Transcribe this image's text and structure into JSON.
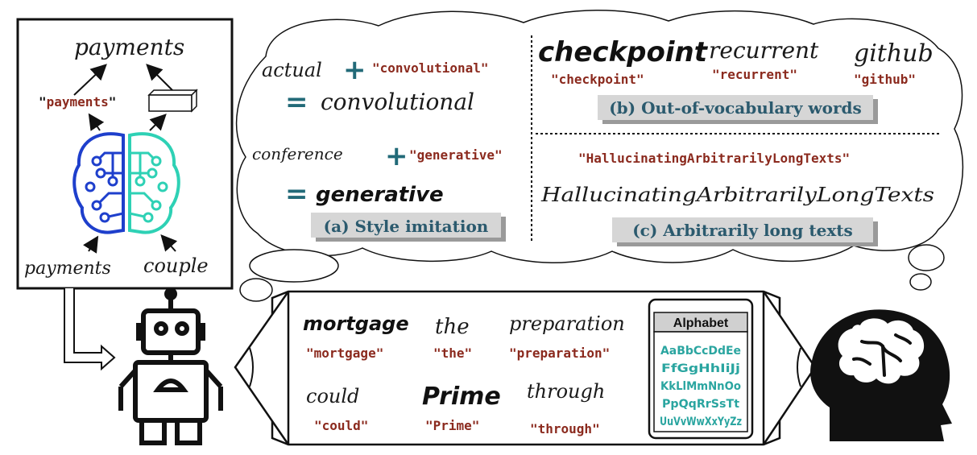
{
  "left_panel": {
    "top_word": "payments",
    "label_q1": "\"",
    "label_text": "payments",
    "label_q2": "\"",
    "bottom_word_1": "payments",
    "bottom_word_2": "couple"
  },
  "cloud": {
    "style_imitation": {
      "row1_style": "actual",
      "row1_text": "\"convolutional\"",
      "row1_result": "convolutional",
      "row2_style": "conference",
      "row2_text": "\"generative\"",
      "row2_result": "generative",
      "caption": "(a) Style imitation"
    },
    "oov": {
      "words": [
        "checkpoint",
        "recurrent",
        "github"
      ],
      "labels": [
        "\"checkpoint\"",
        "\"recurrent\"",
        "\"github\""
      ],
      "caption": "(b) Out-of-vocabulary words"
    },
    "long": {
      "label": "\"HallucinatingArbitrarilyLongTexts\"",
      "word": "HallucinatingArbitrarilyLongTexts",
      "caption": "(c) Arbitrarily long texts"
    }
  },
  "samples": {
    "words": [
      "mortgage",
      "the",
      "preparation",
      "could",
      "Prime",
      "through"
    ],
    "labels": [
      "\"mortgage\"",
      "\"the\"",
      "\"preparation\"",
      "\"could\"",
      "\"Prime\"",
      "\"through\""
    ]
  },
  "alphabet": {
    "title": "Alphabet",
    "rows": [
      "AaBbCcDdEe",
      "FfGgHhIiJj",
      "KkLlMmNnOo",
      "PpQqRrSsTt",
      "UuVvWwXxYyZz"
    ]
  }
}
